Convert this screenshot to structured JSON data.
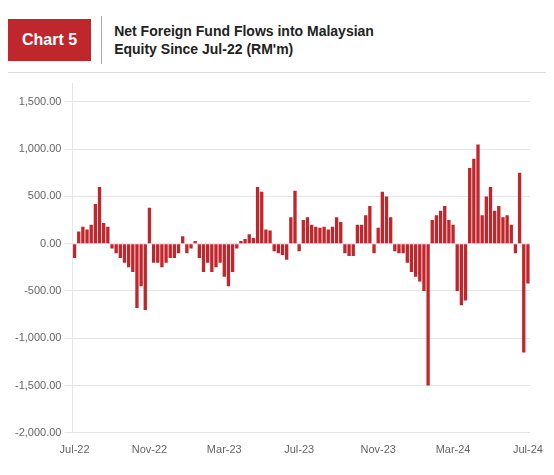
{
  "chart_data": {
    "type": "bar",
    "title": "Net Foreign Fund Flows into Malaysian\nEquity Since Jul-22 (RM'm)",
    "annotations": [
      "Chart 5"
    ],
    "color": "#c0272d",
    "categories": [
      "Jul-22",
      null,
      null,
      null,
      null,
      null,
      null,
      null,
      null,
      null,
      null,
      null,
      null,
      null,
      null,
      null,
      null,
      null,
      "Nov-22",
      null,
      null,
      null,
      null,
      null,
      null,
      null,
      null,
      null,
      null,
      null,
      null,
      null,
      null,
      null,
      null,
      null,
      "Mar-23",
      null,
      null,
      null,
      null,
      null,
      null,
      null,
      null,
      null,
      null,
      null,
      null,
      null,
      null,
      null,
      null,
      null,
      "Jul-23",
      null,
      null,
      null,
      null,
      null,
      null,
      null,
      null,
      null,
      null,
      null,
      null,
      null,
      null,
      null,
      null,
      null,
      null,
      "Nov-23",
      null,
      null,
      null,
      null,
      null,
      null,
      null,
      null,
      null,
      null,
      null,
      null,
      null,
      null,
      null,
      null,
      null,
      "Mar-24",
      null,
      null,
      null,
      null,
      null,
      null,
      null,
      null,
      null,
      null,
      null,
      null,
      null,
      null,
      null,
      null,
      null,
      "Jul-24"
    ],
    "values": [
      -150,
      130,
      180,
      150,
      200,
      420,
      600,
      220,
      180,
      -50,
      -100,
      -150,
      -200,
      -250,
      -300,
      -680,
      -450,
      -700,
      380,
      -200,
      -200,
      -250,
      -200,
      -150,
      -150,
      -100,
      80,
      -100,
      -50,
      30,
      -150,
      -300,
      -200,
      -300,
      -250,
      -200,
      -350,
      -450,
      -300,
      -50,
      30,
      50,
      100,
      60,
      600,
      550,
      150,
      140,
      -80,
      -100,
      -120,
      -170,
      280,
      560,
      -80,
      250,
      280,
      200,
      180,
      170,
      180,
      150,
      180,
      280,
      230,
      -100,
      -130,
      -130,
      200,
      200,
      300,
      400,
      -100,
      170,
      550,
      500,
      280,
      -80,
      -100,
      -100,
      -200,
      -300,
      -350,
      -400,
      -500,
      -1500,
      250,
      300,
      350,
      400,
      250,
      200,
      -500,
      -650,
      -600,
      800,
      900,
      1050,
      300,
      500,
      600,
      350,
      400,
      280,
      300,
      200,
      -100,
      750,
      -1150,
      -420
    ],
    "ylim": [
      -2000,
      1700
    ],
    "yticks": [
      {
        "value": -2000,
        "label": "-2,000.00"
      },
      {
        "value": -1500,
        "label": "-1,500.00"
      },
      {
        "value": -1000,
        "label": "-1,000.00"
      },
      {
        "value": -500,
        "label": "-500.00"
      },
      {
        "value": 0,
        "label": "0.00"
      },
      {
        "value": 500,
        "label": "500.00"
      },
      {
        "value": 1000,
        "label": "1,000.00"
      },
      {
        "value": 1500,
        "label": "1,500.00"
      }
    ],
    "grid": true
  }
}
